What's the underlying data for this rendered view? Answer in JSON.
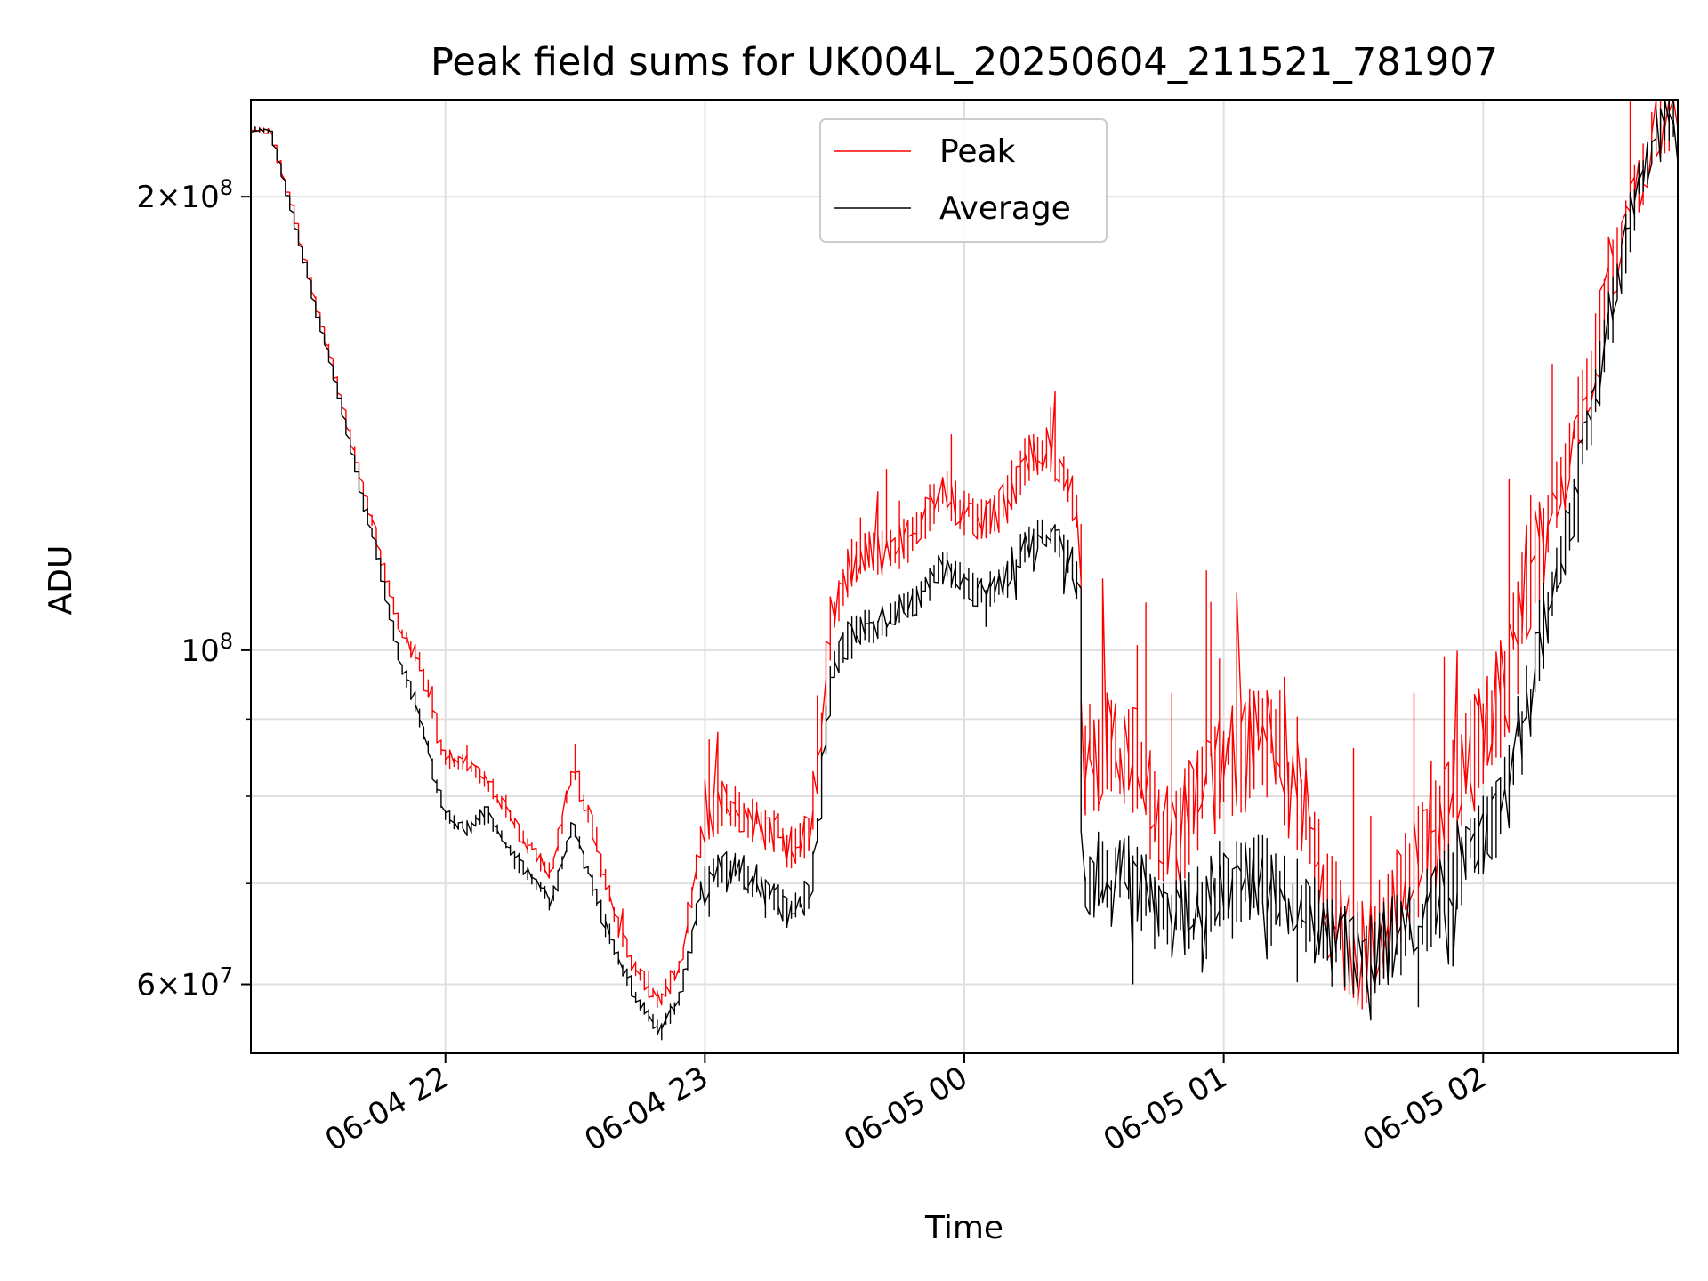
{
  "chart_data": {
    "type": "line",
    "title": "Peak field sums for UK004L_20250604_211521_781907",
    "xlabel": "Time",
    "ylabel": "ADU",
    "y_scale": "log",
    "ylim": [
      54000000,
      232000000
    ],
    "xlim": [
      "2025-06-04 21:15",
      "2025-06-05 02:45"
    ],
    "grid": true,
    "legend_position": "top-center",
    "x_ticks": [
      {
        "t": "2025-06-04 22:00",
        "label": "06-04 22"
      },
      {
        "t": "2025-06-04 23:00",
        "label": "06-04 23"
      },
      {
        "t": "2025-06-05 00:00",
        "label": "06-05 00"
      },
      {
        "t": "2025-06-05 01:00",
        "label": "06-05 01"
      },
      {
        "t": "2025-06-05 02:00",
        "label": "06-05 02"
      }
    ],
    "y_major_ticks": [
      {
        "value": 60000000,
        "mantissa": "6",
        "base": "10",
        "exponent": "7"
      },
      {
        "value": 100000000,
        "mantissa": "",
        "base": "10",
        "exponent": "8"
      },
      {
        "value": 200000000,
        "mantissa": "2",
        "base": "10",
        "exponent": "8"
      }
    ],
    "y_minor_ticks": [
      70000000,
      80000000,
      90000000
    ],
    "series": [
      {
        "name": "Peak",
        "color": "#ff0000",
        "data": [
          [
            "2025-06-04 21:15",
            222000000
          ],
          [
            "2025-06-04 21:20",
            221000000
          ],
          [
            "2025-06-04 21:25",
            197000000
          ],
          [
            "2025-06-04 21:30",
            172000000
          ],
          [
            "2025-06-04 21:35",
            152000000
          ],
          [
            "2025-06-04 21:40",
            133000000
          ],
          [
            "2025-06-04 21:45",
            117000000
          ],
          [
            "2025-06-04 21:50",
            103000000
          ],
          [
            "2025-06-04 21:55",
            98000000
          ],
          [
            "2025-06-04 22:00",
            85000000
          ],
          [
            "2025-06-04 22:05",
            84000000
          ],
          [
            "2025-06-04 22:10",
            82000000
          ],
          [
            "2025-06-04 22:15",
            78000000
          ],
          [
            "2025-06-04 22:20",
            74000000
          ],
          [
            "2025-06-04 22:25",
            71000000
          ],
          [
            "2025-06-04 22:30",
            84000000
          ],
          [
            "2025-06-04 22:35",
            75000000
          ],
          [
            "2025-06-04 22:40",
            66000000
          ],
          [
            "2025-06-04 22:45",
            61000000
          ],
          [
            "2025-06-04 22:50",
            58500000
          ],
          [
            "2025-06-04 22:55",
            62000000
          ],
          [
            "2025-06-04 23:00",
            76000000
          ],
          [
            "2025-06-04 23:05",
            79000000
          ],
          [
            "2025-06-04 23:10",
            78000000
          ],
          [
            "2025-06-04 23:15",
            76000000
          ],
          [
            "2025-06-04 23:20",
            74000000
          ],
          [
            "2025-06-04 23:25",
            76000000
          ],
          [
            "2025-06-04 23:30",
            105000000
          ],
          [
            "2025-06-04 23:35",
            115000000
          ],
          [
            "2025-06-04 23:40",
            116000000
          ],
          [
            "2025-06-04 23:45",
            117000000
          ],
          [
            "2025-06-04 23:50",
            120000000
          ],
          [
            "2025-06-04 23:55",
            128000000
          ],
          [
            "2025-06-05 00:00",
            124000000
          ],
          [
            "2025-06-05 00:05",
            122000000
          ],
          [
            "2025-06-05 00:10",
            125000000
          ],
          [
            "2025-06-05 00:15",
            134000000
          ],
          [
            "2025-06-05 00:20",
            136000000
          ],
          [
            "2025-06-05 00:25",
            128000000
          ],
          [
            "2025-06-05 00:27",
            124000000
          ],
          [
            "2025-06-05 00:28",
            84000000
          ],
          [
            "2025-06-05 00:35",
            87000000
          ],
          [
            "2025-06-05 00:40",
            84000000
          ],
          [
            "2025-06-05 00:45",
            76000000
          ],
          [
            "2025-06-05 00:50",
            75000000
          ],
          [
            "2025-06-05 00:55",
            80000000
          ],
          [
            "2025-06-05 01:00",
            84000000
          ],
          [
            "2025-06-05 01:05",
            85000000
          ],
          [
            "2025-06-05 01:10",
            87000000
          ],
          [
            "2025-06-05 01:15",
            83000000
          ],
          [
            "2025-06-05 01:20",
            78000000
          ],
          [
            "2025-06-05 01:25",
            68000000
          ],
          [
            "2025-06-05 01:30",
            63000000
          ],
          [
            "2025-06-05 01:35",
            63500000
          ],
          [
            "2025-06-05 01:40",
            67000000
          ],
          [
            "2025-06-05 01:45",
            72000000
          ],
          [
            "2025-06-05 01:50",
            75000000
          ],
          [
            "2025-06-05 01:55",
            82000000
          ],
          [
            "2025-06-05 02:00",
            87000000
          ],
          [
            "2025-06-05 02:05",
            93000000
          ],
          [
            "2025-06-05 02:10",
            108000000
          ],
          [
            "2025-06-05 02:15",
            120000000
          ],
          [
            "2025-06-05 02:20",
            133000000
          ],
          [
            "2025-06-05 02:25",
            150000000
          ],
          [
            "2025-06-05 02:30",
            175000000
          ],
          [
            "2025-06-05 02:35",
            200000000
          ],
          [
            "2025-06-05 02:40",
            220000000
          ],
          [
            "2025-06-05 02:45",
            232000000
          ]
        ]
      },
      {
        "name": "Average",
        "color": "#000000",
        "data": [
          [
            "2025-06-04 21:15",
            222000000
          ],
          [
            "2025-06-04 21:20",
            221000000
          ],
          [
            "2025-06-04 21:25",
            196000000
          ],
          [
            "2025-06-04 21:30",
            171000000
          ],
          [
            "2025-06-04 21:35",
            151000000
          ],
          [
            "2025-06-04 21:40",
            131000000
          ],
          [
            "2025-06-04 21:45",
            115000000
          ],
          [
            "2025-06-04 21:50",
            98000000
          ],
          [
            "2025-06-04 21:55",
            90000000
          ],
          [
            "2025-06-04 22:00",
            78000000
          ],
          [
            "2025-06-04 22:05",
            76000000
          ],
          [
            "2025-06-04 22:10",
            78000000
          ],
          [
            "2025-06-04 22:15",
            74000000
          ],
          [
            "2025-06-04 22:20",
            71000000
          ],
          [
            "2025-06-04 22:25",
            68000000
          ],
          [
            "2025-06-04 22:30",
            77000000
          ],
          [
            "2025-06-04 22:35",
            69000000
          ],
          [
            "2025-06-04 22:40",
            63000000
          ],
          [
            "2025-06-04 22:45",
            58500000
          ],
          [
            "2025-06-04 22:50",
            56000000
          ],
          [
            "2025-06-04 22:55",
            59000000
          ],
          [
            "2025-06-04 23:00",
            70000000
          ],
          [
            "2025-06-04 23:05",
            72000000
          ],
          [
            "2025-06-04 23:10",
            71000000
          ],
          [
            "2025-06-04 23:15",
            69000000
          ],
          [
            "2025-06-04 23:20",
            67000000
          ],
          [
            "2025-06-04 23:25",
            69000000
          ],
          [
            "2025-06-04 23:30",
            98000000
          ],
          [
            "2025-06-04 23:35",
            103000000
          ],
          [
            "2025-06-04 23:40",
            104000000
          ],
          [
            "2025-06-04 23:45",
            106000000
          ],
          [
            "2025-06-04 23:50",
            108000000
          ],
          [
            "2025-06-04 23:55",
            114000000
          ],
          [
            "2025-06-05 00:00",
            111000000
          ],
          [
            "2025-06-05 00:05",
            109000000
          ],
          [
            "2025-06-05 00:10",
            112000000
          ],
          [
            "2025-06-05 00:15",
            118000000
          ],
          [
            "2025-06-05 00:20",
            120000000
          ],
          [
            "2025-06-05 00:25",
            115000000
          ],
          [
            "2025-06-05 00:27",
            110000000
          ],
          [
            "2025-06-05 00:28",
            70000000
          ],
          [
            "2025-06-05 00:35",
            72000000
          ],
          [
            "2025-06-05 00:40",
            70000000
          ],
          [
            "2025-06-05 00:45",
            67000000
          ],
          [
            "2025-06-05 00:50",
            66500000
          ],
          [
            "2025-06-05 00:55",
            68000000
          ],
          [
            "2025-06-05 01:00",
            70000000
          ],
          [
            "2025-06-05 01:05",
            70500000
          ],
          [
            "2025-06-05 01:10",
            71000000
          ],
          [
            "2025-06-05 01:15",
            69000000
          ],
          [
            "2025-06-05 01:20",
            67000000
          ],
          [
            "2025-06-05 01:25",
            65000000
          ],
          [
            "2025-06-05 01:30",
            63000000
          ],
          [
            "2025-06-05 01:35",
            63000000
          ],
          [
            "2025-06-05 01:40",
            64500000
          ],
          [
            "2025-06-05 01:45",
            66000000
          ],
          [
            "2025-06-05 01:50",
            68000000
          ],
          [
            "2025-06-05 01:55",
            72000000
          ],
          [
            "2025-06-05 02:00",
            75000000
          ],
          [
            "2025-06-05 02:05",
            80000000
          ],
          [
            "2025-06-05 02:10",
            90000000
          ],
          [
            "2025-06-05 02:15",
            105000000
          ],
          [
            "2025-06-05 02:20",
            120000000
          ],
          [
            "2025-06-05 02:25",
            140000000
          ],
          [
            "2025-06-05 02:30",
            168000000
          ],
          [
            "2025-06-05 02:35",
            196000000
          ],
          [
            "2025-06-05 02:40",
            218000000
          ],
          [
            "2025-06-05 02:45",
            232000000
          ]
        ]
      }
    ]
  }
}
